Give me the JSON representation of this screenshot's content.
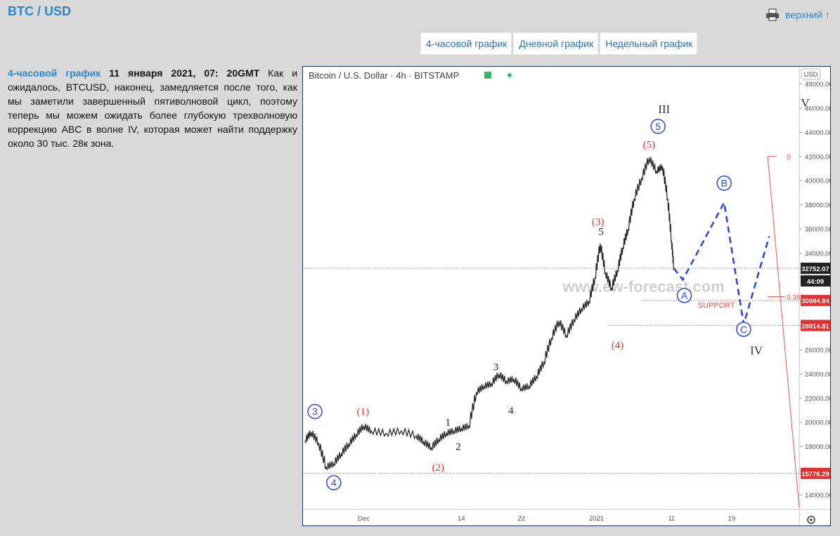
{
  "page": {
    "title": "BTC / USD",
    "top_link": "верхний ↑"
  },
  "tabs": [
    "4-часовой график",
    "Дневной график",
    "Недельный график"
  ],
  "description": {
    "link_text": "4-часовой график",
    "date": "11 января 2021, 07: 20GMT",
    "text": " Как и ожидалось, BTCUSD, наконец, замедляется после того, как мы заметили завершенный пятиволновой цикл, поэтому теперь мы можем ожидать более глубокую трехволновую коррекцию ABC в волне IV, которая может найти поддержку около 30 тыс. 28к зона."
  },
  "chart_data": {
    "type": "line",
    "instrument": "Bitcoin / U.S. Dollar · 4h · BITSTAMP",
    "currency_button": "USD",
    "watermark": "www.ew-forecast.com",
    "support_label": "SUPPORT",
    "fib_labels": [
      "0",
      "0.382"
    ],
    "price_labels": {
      "last": "32752.07",
      "countdown": "44:09",
      "level1": "30084.84",
      "level2": "28014.81",
      "level3": "15776.29"
    },
    "y_ticks": [
      48000,
      46000,
      44000,
      42000,
      40000,
      38000,
      36000,
      34000,
      32000,
      30000,
      28000,
      26000,
      24000,
      22000,
      20000,
      18000,
      16000,
      14000
    ],
    "y_tick_labels": [
      "48000.00",
      "46000.00",
      "44000.00",
      "42000.00",
      "40000.00",
      "38000.00",
      "36000.00",
      "34000.00",
      "32000.00",
      "30000.00",
      "28000.00",
      "26000.00",
      "24000.00",
      "22000.00",
      "20000.00",
      "18000.00",
      "16000.00",
      "14000.00"
    ],
    "ylim": [
      12800,
      49200
    ],
    "x_ticks": [
      {
        "label": "Dec",
        "x": 12
      },
      {
        "label": "14",
        "x": 25
      },
      {
        "label": "22",
        "x": 33
      },
      {
        "label": "2021",
        "x": 43
      },
      {
        "label": "11",
        "x": 53
      },
      {
        "label": "19",
        "x": 61
      }
    ],
    "xlim": [
      4,
      70
    ],
    "price_path": [
      [
        4.2,
        18500
      ],
      [
        5,
        19200
      ],
      [
        6,
        18300
      ],
      [
        7,
        16300
      ],
      [
        8,
        16600
      ],
      [
        9,
        17400
      ],
      [
        10,
        18200
      ],
      [
        11,
        19000
      ],
      [
        12,
        19700
      ],
      [
        13,
        19300
      ],
      [
        15,
        19100
      ],
      [
        17,
        19300
      ],
      [
        19,
        18900
      ],
      [
        20,
        18400
      ],
      [
        21,
        17900
      ],
      [
        22,
        18600
      ],
      [
        23,
        19100
      ],
      [
        24,
        19300
      ],
      [
        25,
        19500
      ],
      [
        26,
        19700
      ],
      [
        27,
        22500
      ],
      [
        28,
        23000
      ],
      [
        29,
        23200
      ],
      [
        30,
        24000
      ],
      [
        31,
        23400
      ],
      [
        32,
        23600
      ],
      [
        33,
        22800
      ],
      [
        34,
        23000
      ],
      [
        35,
        23800
      ],
      [
        36,
        25000
      ],
      [
        37,
        27000
      ],
      [
        38,
        28400
      ],
      [
        39,
        27200
      ],
      [
        40,
        28500
      ],
      [
        41,
        29400
      ],
      [
        42,
        30000
      ],
      [
        42.8,
        32000
      ],
      [
        43.5,
        34800
      ],
      [
        44.2,
        32400
      ],
      [
        45,
        31100
      ],
      [
        45.8,
        32600
      ],
      [
        46.5,
        34500
      ],
      [
        47.2,
        36000
      ],
      [
        48,
        38500
      ],
      [
        49,
        40200
      ],
      [
        50,
        41900
      ],
      [
        51,
        40800
      ],
      [
        51.8,
        41200
      ],
      [
        52.5,
        38500
      ],
      [
        53,
        35000
      ],
      [
        53.3,
        32752
      ]
    ],
    "forecast_path": [
      [
        53.3,
        32752
      ],
      [
        54.5,
        31800
      ],
      [
        60,
        38200
      ],
      [
        62.6,
        28100
      ],
      [
        66,
        35400
      ]
    ],
    "wave_labels": [
      {
        "text": "(1)",
        "x": 11.9,
        "y": 20900,
        "color": "#e03030"
      },
      {
        "text": "(2)",
        "x": 21.9,
        "y": 16300,
        "color": "#e03030"
      },
      {
        "text": "(3)",
        "x": 43.2,
        "y": 36600,
        "color": "#e03030"
      },
      {
        "text": "(4)",
        "x": 45.8,
        "y": 26400,
        "color": "#e03030"
      },
      {
        "text": "(5)",
        "x": 50,
        "y": 43000,
        "color": "#e03030"
      },
      {
        "text": "1",
        "x": 23.2,
        "y": 20000,
        "color": "#222"
      },
      {
        "text": "2",
        "x": 24.6,
        "y": 18000,
        "color": "#222"
      },
      {
        "text": "3",
        "x": 29.6,
        "y": 24600,
        "color": "#222"
      },
      {
        "text": "4",
        "x": 31.6,
        "y": 21000,
        "color": "#222"
      },
      {
        "text": "5",
        "x": 43.6,
        "y": 35800,
        "color": "#222"
      },
      {
        "text": "III",
        "x": 52,
        "y": 45900,
        "color": "#333"
      },
      {
        "text": "IV",
        "x": 64.3,
        "y": 25900,
        "color": "#333"
      },
      {
        "text": "V",
        "x": 70.8,
        "y": 46400,
        "color": "#333"
      }
    ],
    "circle_labels": [
      {
        "text": "3",
        "x": 5.5,
        "y": 20900
      },
      {
        "text": "4",
        "x": 8,
        "y": 15000
      },
      {
        "text": "5",
        "x": 51.2,
        "y": 44500
      },
      {
        "text": "A",
        "x": 54.7,
        "y": 30500
      },
      {
        "text": "B",
        "x": 60,
        "y": 39800
      },
      {
        "text": "C",
        "x": 62.6,
        "y": 27700
      }
    ],
    "level_lines": [
      32752.07,
      30084.84,
      28014.81,
      15776.29
    ],
    "fib_line": {
      "x_start": 65.8,
      "x_end": 67,
      "y_top": 42000,
      "x_bottom": 70,
      "y_bottom": 12900,
      "y_0382": 30390
    }
  }
}
